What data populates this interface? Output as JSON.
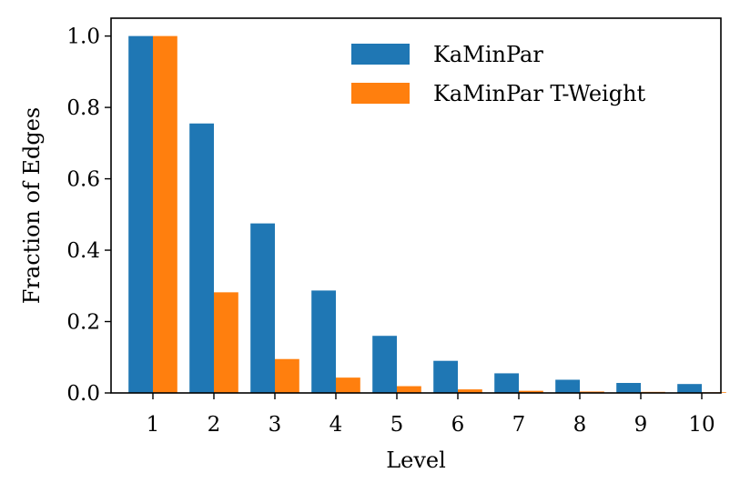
{
  "chart_data": {
    "type": "bar",
    "title": "",
    "xlabel": "Level",
    "ylabel": "Fraction of Edges",
    "categories": [
      "1",
      "2",
      "3",
      "4",
      "5",
      "6",
      "7",
      "8",
      "9",
      "10"
    ],
    "series": [
      {
        "name": "KaMinPar",
        "color": "#1f77b4",
        "values": [
          1.0,
          0.755,
          0.475,
          0.287,
          0.16,
          0.09,
          0.055,
          0.037,
          0.028,
          0.025
        ]
      },
      {
        "name": "KaMinPar T-Weight",
        "color": "#ff7f0e",
        "values": [
          1.0,
          0.282,
          0.095,
          0.043,
          0.019,
          0.01,
          0.006,
          0.004,
          0.003,
          0.002
        ]
      }
    ],
    "ylim": [
      0,
      1.05
    ],
    "yticks": [
      "0.0",
      "0.2",
      "0.4",
      "0.6",
      "0.8",
      "1.0"
    ],
    "legend": "upper-right",
    "grid": false
  }
}
